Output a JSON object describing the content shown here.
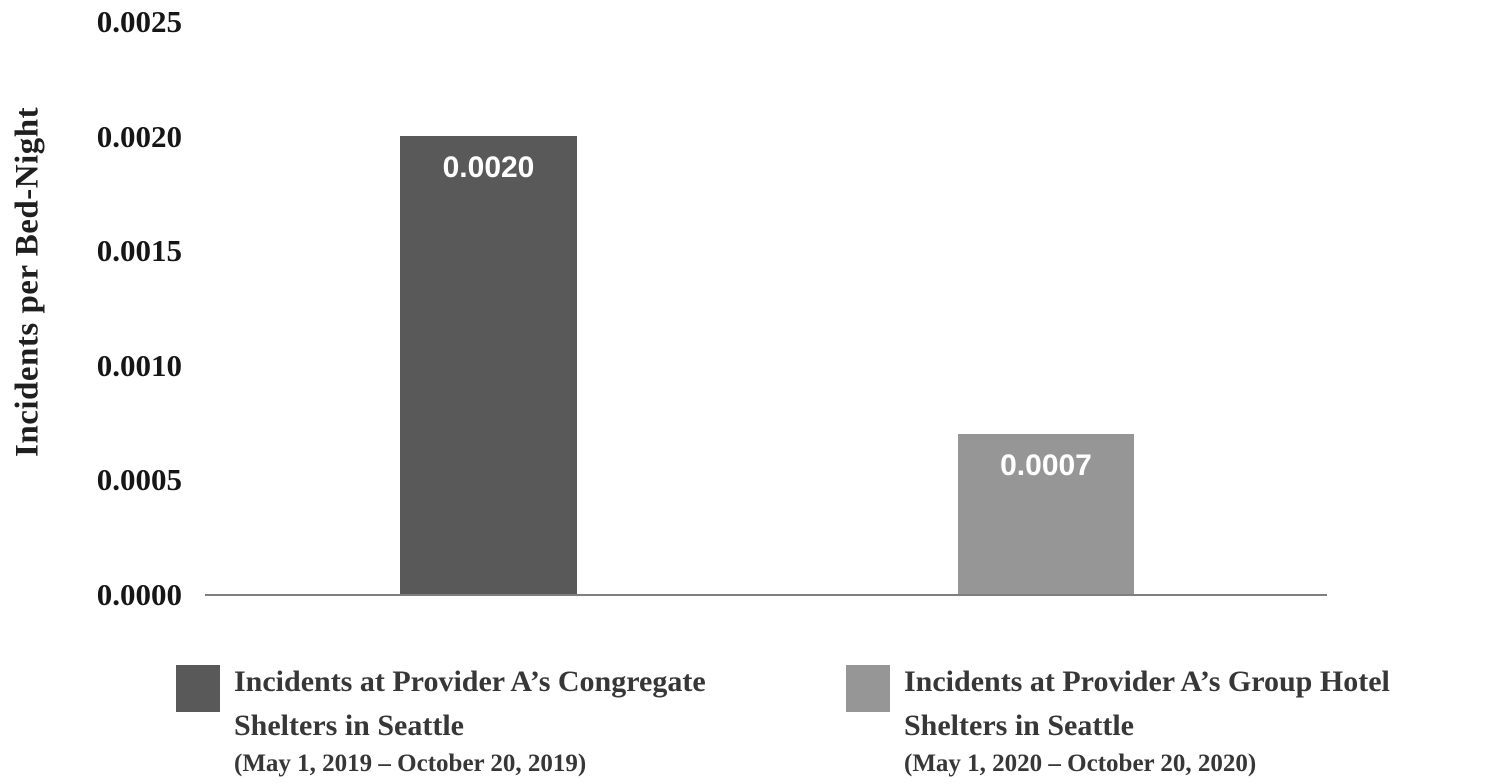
{
  "chart_data": {
    "type": "bar",
    "title": "",
    "xlabel": "",
    "ylabel": "Incidents per Bed-Night",
    "ylim": [
      0,
      0.0025
    ],
    "yticks": [
      "0.0000",
      "0.0005",
      "0.0010",
      "0.0015",
      "0.0020",
      "0.0025"
    ],
    "grid": false,
    "legend_position": "bottom",
    "categories": [
      "Incidents at Provider A’s Congregate Shelters in Seattle (May 1, 2019 – October 20, 2019)",
      "Incidents at Provider A’s Group Hotel Shelters in Seattle (May 1, 2020 – October 20, 2020)"
    ],
    "values": [
      0.002,
      0.0007
    ],
    "bar_labels": [
      "0.0020",
      "0.0007"
    ],
    "bar_colors": [
      "#595959",
      "#969696"
    ],
    "axis_line_color": "#7f7f7f",
    "legend": [
      {
        "label": "Incidents at Provider A’s Congregate Shelters in Seattle",
        "sublabel": "(May 1, 2019 – October 20, 2019)",
        "color": "#595959"
      },
      {
        "label": "Incidents at Provider A’s Group Hotel Shelters in Seattle",
        "sublabel": "(May 1, 2020 – October 20, 2020)",
        "color": "#969696"
      }
    ]
  }
}
